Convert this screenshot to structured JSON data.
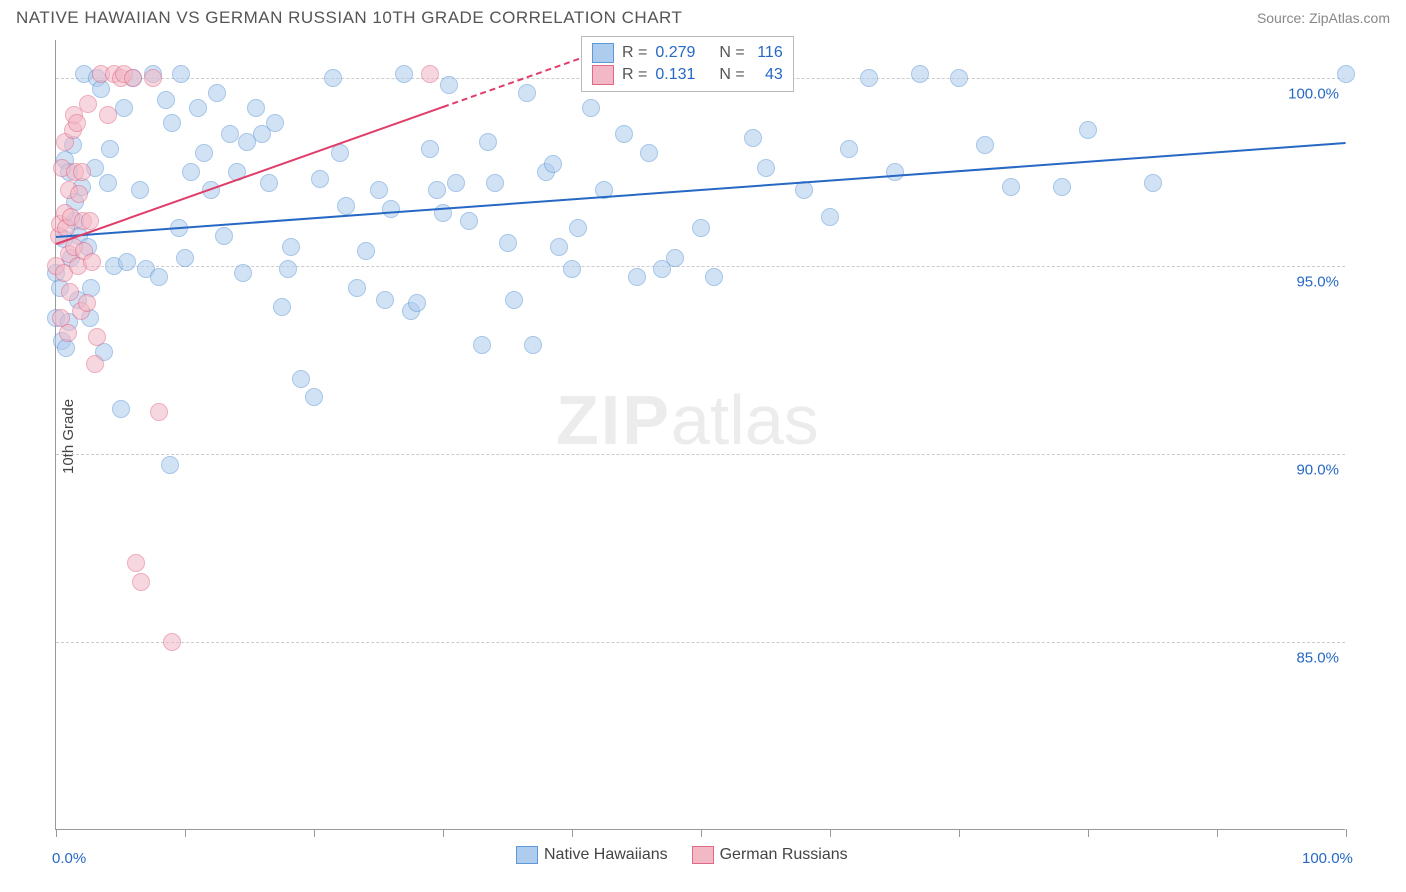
{
  "title": "NATIVE HAWAIIAN VS GERMAN RUSSIAN 10TH GRADE CORRELATION CHART",
  "source": "Source: ZipAtlas.com",
  "ylabel": "10th Grade",
  "watermark_a": "ZIP",
  "watermark_b": "atlas",
  "chart": {
    "type": "scatter",
    "xlim": [
      0,
      100
    ],
    "ylim": [
      80,
      101
    ],
    "x_ticks": [
      0,
      10,
      20,
      30,
      40,
      50,
      60,
      70,
      80,
      90,
      100
    ],
    "x_tick_labels": {
      "0": "0.0%",
      "100": "100.0%"
    },
    "y_gridlines": [
      85,
      90,
      95,
      100
    ],
    "y_tick_labels": {
      "85": "85.0%",
      "90": "90.0%",
      "95": "95.0%",
      "100": "100.0%"
    },
    "background_color": "#ffffff",
    "grid_color": "#cccccc",
    "axis_color": "#999999",
    "tick_label_color": "#2668c4",
    "tick_label_fontsize": 15,
    "point_radius": 9,
    "series": [
      {
        "name": "Native Hawaiians",
        "fill": "#aeccee",
        "stroke": "#5f98d6",
        "fill_opacity": 0.55,
        "r_value": "0.279",
        "n_value": "116",
        "trend": {
          "x1": 0,
          "y1": 95.8,
          "x2": 100,
          "y2": 98.3,
          "color": "#2668c4",
          "solid_end_x": 100
        },
        "points": [
          [
            0,
            93.6
          ],
          [
            0,
            94.8
          ],
          [
            0.3,
            94.4
          ],
          [
            0.5,
            93.0
          ],
          [
            0.6,
            95.7
          ],
          [
            0.7,
            97.8
          ],
          [
            0.8,
            92.8
          ],
          [
            1,
            93.5
          ],
          [
            1,
            97.5
          ],
          [
            1.2,
            95.2
          ],
          [
            1.3,
            98.2
          ],
          [
            1.5,
            96.2
          ],
          [
            1.5,
            96.7
          ],
          [
            1.7,
            94.1
          ],
          [
            1.8,
            95.8
          ],
          [
            2,
            97.1
          ],
          [
            2.2,
            100.1
          ],
          [
            2.5,
            95.5
          ],
          [
            2.6,
            93.6
          ],
          [
            2.7,
            94.4
          ],
          [
            3,
            97.6
          ],
          [
            3.2,
            100
          ],
          [
            3.5,
            99.7
          ],
          [
            3.7,
            92.7
          ],
          [
            4,
            97.2
          ],
          [
            4.2,
            98.1
          ],
          [
            4.5,
            95.0
          ],
          [
            5,
            91.2
          ],
          [
            5.3,
            99.2
          ],
          [
            5.5,
            95.1
          ],
          [
            6,
            100
          ],
          [
            6.5,
            97.0
          ],
          [
            7,
            94.9
          ],
          [
            7.5,
            100.1
          ],
          [
            8,
            94.7
          ],
          [
            8.5,
            99.4
          ],
          [
            8.8,
            89.7
          ],
          [
            9,
            98.8
          ],
          [
            9.5,
            96.0
          ],
          [
            9.7,
            100.1
          ],
          [
            10,
            95.2
          ],
          [
            10.5,
            97.5
          ],
          [
            11,
            99.2
          ],
          [
            11.5,
            98.0
          ],
          [
            12,
            97.0
          ],
          [
            12.5,
            99.6
          ],
          [
            13,
            95.8
          ],
          [
            13.5,
            98.5
          ],
          [
            14,
            97.5
          ],
          [
            14.5,
            94.8
          ],
          [
            14.8,
            98.3
          ],
          [
            15.5,
            99.2
          ],
          [
            16,
            98.5
          ],
          [
            16.5,
            97.2
          ],
          [
            17,
            98.8
          ],
          [
            17.5,
            93.9
          ],
          [
            18,
            94.9
          ],
          [
            18.2,
            95.5
          ],
          [
            19,
            92.0
          ],
          [
            20,
            91.5
          ],
          [
            20.5,
            97.3
          ],
          [
            21.5,
            100
          ],
          [
            22,
            98.0
          ],
          [
            22.5,
            96.6
          ],
          [
            23.3,
            94.4
          ],
          [
            24,
            95.4
          ],
          [
            25,
            97.0
          ],
          [
            25.5,
            94.1
          ],
          [
            26,
            96.5
          ],
          [
            27,
            100.1
          ],
          [
            27.5,
            93.8
          ],
          [
            28,
            94.0
          ],
          [
            29,
            98.1
          ],
          [
            29.5,
            97.0
          ],
          [
            30,
            96.4
          ],
          [
            30.5,
            99.8
          ],
          [
            31,
            97.2
          ],
          [
            32,
            96.2
          ],
          [
            33,
            92.9
          ],
          [
            33.5,
            98.3
          ],
          [
            34,
            97.2
          ],
          [
            35,
            95.6
          ],
          [
            35.5,
            94.1
          ],
          [
            36.5,
            99.6
          ],
          [
            37,
            92.9
          ],
          [
            38,
            97.5
          ],
          [
            38.5,
            97.7
          ],
          [
            39,
            95.5
          ],
          [
            40,
            94.9
          ],
          [
            40.5,
            96.0
          ],
          [
            41.5,
            99.2
          ],
          [
            42.5,
            97.0
          ],
          [
            44,
            98.5
          ],
          [
            45,
            94.7
          ],
          [
            46,
            98.0
          ],
          [
            47,
            94.9
          ],
          [
            48,
            95.2
          ],
          [
            50,
            96.0
          ],
          [
            51,
            94.7
          ],
          [
            52,
            100.1
          ],
          [
            54,
            98.4
          ],
          [
            55,
            97.6
          ],
          [
            56.5,
            99.9
          ],
          [
            58,
            97.0
          ],
          [
            60,
            96.3
          ],
          [
            61.5,
            98.1
          ],
          [
            63,
            100
          ],
          [
            65,
            97.5
          ],
          [
            67,
            100.1
          ],
          [
            70,
            100
          ],
          [
            72,
            98.2
          ],
          [
            74,
            97.1
          ],
          [
            78,
            97.1
          ],
          [
            80,
            98.6
          ],
          [
            85,
            97.2
          ],
          [
            100,
            100.1
          ]
        ]
      },
      {
        "name": "German Russians",
        "fill": "#f2b8c6",
        "stroke": "#e26986",
        "fill_opacity": 0.55,
        "r_value": "0.131",
        "n_value": "43",
        "trend": {
          "x1": 0,
          "y1": 95.6,
          "x2": 42,
          "y2": 100.7,
          "color": "#e03e6a",
          "solid_end_x": 30
        },
        "points": [
          [
            0,
            95.0
          ],
          [
            0.2,
            95.8
          ],
          [
            0.3,
            96.1
          ],
          [
            0.4,
            93.6
          ],
          [
            0.5,
            97.6
          ],
          [
            0.6,
            94.8
          ],
          [
            0.7,
            96.4
          ],
          [
            0.7,
            98.3
          ],
          [
            0.8,
            96.0
          ],
          [
            0.9,
            93.2
          ],
          [
            1,
            95.3
          ],
          [
            1,
            97.0
          ],
          [
            1.1,
            94.3
          ],
          [
            1.2,
            96.3
          ],
          [
            1.3,
            98.6
          ],
          [
            1.4,
            95.5
          ],
          [
            1.4,
            99.0
          ],
          [
            1.5,
            97.5
          ],
          [
            1.6,
            98.8
          ],
          [
            1.7,
            95.0
          ],
          [
            1.8,
            96.9
          ],
          [
            1.9,
            93.8
          ],
          [
            2,
            97.5
          ],
          [
            2.1,
            96.2
          ],
          [
            2.2,
            95.4
          ],
          [
            2.4,
            94.0
          ],
          [
            2.5,
            99.3
          ],
          [
            2.6,
            96.2
          ],
          [
            2.8,
            95.1
          ],
          [
            3.0,
            92.4
          ],
          [
            3.2,
            93.1
          ],
          [
            3.5,
            100.1
          ],
          [
            4,
            99.0
          ],
          [
            4.5,
            100.1
          ],
          [
            5,
            100
          ],
          [
            5.3,
            100.1
          ],
          [
            6,
            100
          ],
          [
            6.2,
            87.1
          ],
          [
            6.6,
            86.6
          ],
          [
            7.5,
            100
          ],
          [
            8,
            91.1
          ],
          [
            9,
            85.0
          ],
          [
            29,
            100.1
          ]
        ]
      }
    ]
  },
  "legend_top": {
    "r_label": "R =",
    "n_label": "N ="
  },
  "legend_bottom": {
    "items": [
      {
        "label": "Native Hawaiians",
        "fill": "#aeccee",
        "stroke": "#5f98d6"
      },
      {
        "label": "German Russians",
        "fill": "#f2b8c6",
        "stroke": "#e26986"
      }
    ]
  }
}
